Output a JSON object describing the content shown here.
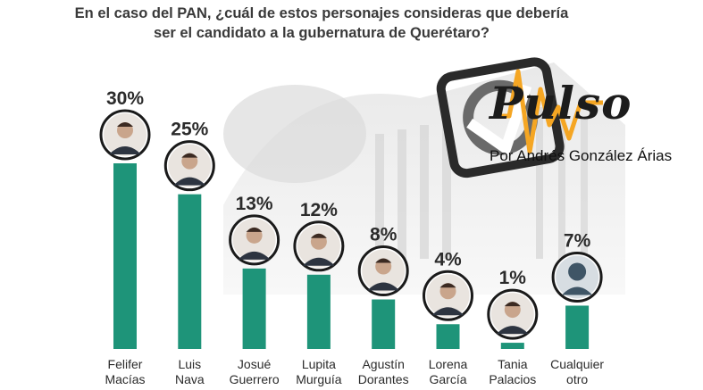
{
  "title_lines": [
    "En el caso del PAN, ¿cuál de estos personajes consideras que debería",
    "ser el candidato a la gubernatura de Querétaro?"
  ],
  "brand": {
    "name": "Pulso",
    "subtitle": "Por Andrés González Árias",
    "accent_color": "#f5a623",
    "logo_dark": "#2a2a2a"
  },
  "colors": {
    "bar": "#1e9479",
    "text": "#2b2b2b",
    "avatar_ring": "#1a1a1a",
    "placeholder": "#3f5566"
  },
  "chart_data": {
    "type": "bar",
    "categories": [
      [
        "Felifer",
        "Macías"
      ],
      [
        "Luis",
        "Nava"
      ],
      [
        "Josué",
        "Guerrero"
      ],
      [
        "Lupita",
        "Murguía"
      ],
      [
        "Agustín",
        "Dorantes"
      ],
      [
        "Lorena",
        "García"
      ],
      [
        "Tania",
        "Palacios"
      ],
      [
        "Cualquier",
        "otro"
      ]
    ],
    "values": [
      30,
      25,
      13,
      12,
      8,
      4,
      1,
      7
    ],
    "value_labels": [
      "30%",
      "25%",
      "13%",
      "12%",
      "8%",
      "4%",
      "1%",
      "7%"
    ],
    "title": "En el caso del PAN, ¿cuál de estos personajes consideras que debería ser el candidato a la gubernatura de Querétaro?",
    "xlabel": "",
    "ylabel": "",
    "ylim": [
      0,
      32
    ],
    "grid": false,
    "legend": "none"
  }
}
